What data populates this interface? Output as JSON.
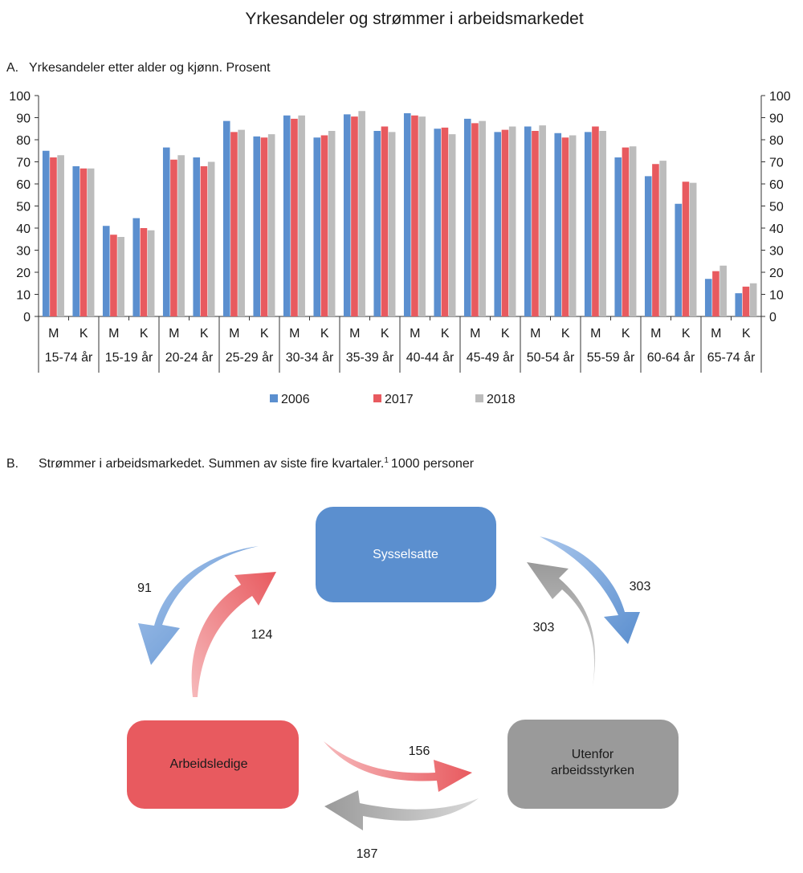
{
  "figure": {
    "title": "Yrkesandeler og strømmer i arbeidsmarkedet"
  },
  "chart_data": {
    "type": "bar",
    "panel_label": "A.",
    "title": "Yrkesandeler etter alder og kjønn. Prosent",
    "xlabel": "",
    "ylabel": "",
    "ylim": [
      0,
      100
    ],
    "yticks": [
      0,
      10,
      20,
      30,
      40,
      50,
      60,
      70,
      80,
      90,
      100
    ],
    "groups": [
      "15-74 år",
      "15-19 år",
      "20-24 år",
      "25-29 år",
      "30-34 år",
      "35-39 år",
      "40-44 år",
      "45-49 år",
      "50-54 år",
      "55-59 år",
      "60-64 år",
      "65-74 år"
    ],
    "subcategories": [
      "M",
      "K"
    ],
    "categories": [
      "15-74 år M",
      "15-74 år K",
      "15-19 år M",
      "15-19 år K",
      "20-24 år M",
      "20-24 år K",
      "25-29 år M",
      "25-29 år K",
      "30-34 år M",
      "30-34 år K",
      "35-39 år M",
      "35-39 år K",
      "40-44 år M",
      "40-44 år K",
      "45-49 år M",
      "45-49 år K",
      "50-54 år M",
      "50-54 år K",
      "55-59 år M",
      "55-59 år K",
      "60-64 år M",
      "60-64 år K",
      "65-74 år M",
      "65-74 år K"
    ],
    "series": [
      {
        "name": "2006",
        "color": "#5b8fcf",
        "values": [
          75,
          68,
          41,
          44.5,
          76.5,
          72,
          88.5,
          81.5,
          91,
          81,
          91.5,
          84,
          92,
          85,
          89.5,
          83.5,
          86,
          83,
          83.5,
          72,
          63.5,
          51,
          17,
          10.5
        ]
      },
      {
        "name": "2017",
        "color": "#e85a5f",
        "values": [
          72,
          67,
          37,
          40,
          71,
          68,
          83.5,
          81,
          89.5,
          82,
          90.5,
          86,
          91,
          85.5,
          87.5,
          84.5,
          84,
          81,
          86,
          76.5,
          69,
          61,
          20.5,
          13.5
        ]
      },
      {
        "name": "2018",
        "color": "#bcbcbc",
        "values": [
          73,
          67,
          36,
          39,
          73,
          70,
          84.5,
          82.5,
          91,
          84,
          93,
          83.5,
          90.5,
          82.5,
          88.5,
          86,
          86.5,
          82,
          84,
          77,
          70.5,
          60.5,
          23,
          15
        ]
      }
    ],
    "legend_position": "bottom-center"
  },
  "flow_diagram": {
    "panel_label": "B.",
    "title": "Strømmer i arbeidsmarkedet. Summen av siste fire kvartaler.",
    "footnote_marker": "1",
    "title_suffix": "1000 personer",
    "nodes": {
      "employed": {
        "label": "Sysselsatte",
        "color": "#5b8fcf"
      },
      "unemployed": {
        "label": "Arbeidsledige",
        "color": "#e85a5f"
      },
      "outside_line1": "Utenfor",
      "outside_line2": "arbeidsstyrken",
      "outside_color": "#9a9a9a"
    },
    "flows": {
      "employed_to_unemployed": 91,
      "unemployed_to_employed": 124,
      "employed_to_outside": 303,
      "outside_to_employed": 303,
      "unemployed_to_outside": 156,
      "outside_to_unemployed": 187
    }
  }
}
